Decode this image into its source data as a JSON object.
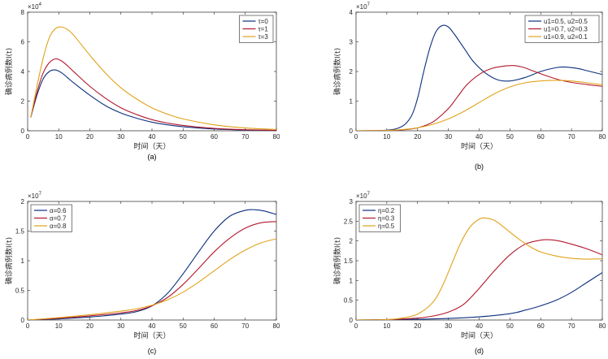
{
  "colors": {
    "blue": "#0b2f7e",
    "red": "#b2182b",
    "orange": "#e0a21b",
    "axis": "#262626"
  },
  "chart_data": [
    {
      "panel": "a",
      "type": "line",
      "caption": "(a)",
      "xlabel": "时间（天）",
      "ylabel": "确诊病例数I(t)",
      "exponent_label": "×10",
      "exponent_power": "4",
      "xlim": [
        0,
        80
      ],
      "ylim": [
        0,
        8
      ],
      "xticks": [
        0,
        10,
        20,
        30,
        40,
        50,
        60,
        70,
        80
      ],
      "yticks": [
        0,
        2,
        4,
        6,
        8
      ],
      "legend_position": "top-right",
      "series": [
        {
          "name": "τ=0",
          "color": "#0b2f7e",
          "x": [
            1,
            3,
            5,
            7,
            9,
            11,
            13,
            15,
            20,
            25,
            30,
            35,
            40,
            45,
            50,
            60,
            70,
            80
          ],
          "y": [
            0.9,
            2.4,
            3.5,
            4.0,
            4.1,
            3.9,
            3.55,
            3.2,
            2.4,
            1.7,
            1.2,
            0.85,
            0.58,
            0.4,
            0.27,
            0.12,
            0.05,
            0.02
          ]
        },
        {
          "name": "τ=1",
          "color": "#b2182b",
          "x": [
            1,
            3,
            5,
            7,
            9,
            11,
            13,
            15,
            20,
            25,
            30,
            35,
            40,
            45,
            50,
            60,
            70,
            80
          ],
          "y": [
            0.9,
            2.6,
            3.9,
            4.6,
            4.85,
            4.7,
            4.35,
            3.95,
            3.0,
            2.2,
            1.55,
            1.1,
            0.75,
            0.52,
            0.36,
            0.16,
            0.07,
            0.03
          ]
        },
        {
          "name": "τ=3",
          "color": "#e0a21b",
          "x": [
            1,
            3,
            5,
            7,
            9,
            11,
            13,
            15,
            20,
            25,
            30,
            35,
            40,
            45,
            50,
            60,
            70,
            80
          ],
          "y": [
            0.9,
            3.0,
            4.9,
            6.3,
            6.9,
            7.0,
            6.8,
            6.4,
            5.1,
            3.9,
            2.9,
            2.15,
            1.55,
            1.12,
            0.8,
            0.4,
            0.19,
            0.09
          ]
        }
      ]
    },
    {
      "panel": "b",
      "type": "line",
      "caption": "(b)",
      "xlabel": "时间（天）",
      "ylabel": "确诊病例数I(t)",
      "exponent_label": "×10",
      "exponent_power": "7",
      "xlim": [
        0,
        80
      ],
      "ylim": [
        0,
        4
      ],
      "xticks": [
        0,
        10,
        20,
        30,
        40,
        50,
        60,
        70,
        80
      ],
      "yticks": [
        0,
        1,
        2,
        3,
        4
      ],
      "legend_position": "top-right",
      "series": [
        {
          "name": "u1=0.5, u2=0.5",
          "color": "#0b2f7e",
          "x": [
            0,
            10,
            15,
            18,
            20,
            22,
            24,
            26,
            28,
            30,
            32,
            35,
            38,
            42,
            46,
            50,
            55,
            60,
            65,
            68,
            72,
            76,
            80
          ],
          "y": [
            0,
            0.02,
            0.15,
            0.5,
            1.1,
            2.0,
            2.8,
            3.35,
            3.55,
            3.5,
            3.25,
            2.8,
            2.35,
            1.95,
            1.72,
            1.68,
            1.8,
            2.0,
            2.13,
            2.15,
            2.1,
            2.0,
            1.9
          ]
        },
        {
          "name": "u1=0.7, u2=0.3",
          "color": "#b2182b",
          "x": [
            0,
            10,
            15,
            20,
            25,
            30,
            33,
            36,
            40,
            44,
            48,
            51,
            54,
            58,
            62,
            66,
            70,
            75,
            80
          ],
          "y": [
            0,
            0.01,
            0.03,
            0.1,
            0.3,
            0.75,
            1.15,
            1.55,
            1.9,
            2.1,
            2.18,
            2.2,
            2.15,
            2.0,
            1.85,
            1.72,
            1.63,
            1.56,
            1.5
          ]
        },
        {
          "name": "u1=0.9, u2=0.1",
          "color": "#e0a21b",
          "x": [
            0,
            10,
            15,
            20,
            25,
            30,
            35,
            40,
            45,
            50,
            55,
            60,
            65,
            70,
            75,
            80
          ],
          "y": [
            0,
            0.01,
            0.04,
            0.1,
            0.22,
            0.4,
            0.65,
            0.95,
            1.25,
            1.48,
            1.62,
            1.68,
            1.7,
            1.68,
            1.62,
            1.55
          ]
        }
      ]
    },
    {
      "panel": "c",
      "type": "line",
      "caption": "(c)",
      "xlabel": "时间（天）",
      "ylabel": "确诊病例数I(t)",
      "exponent_label": "×10",
      "exponent_power": "7",
      "xlim": [
        0,
        80
      ],
      "ylim": [
        0,
        2
      ],
      "xticks": [
        0,
        10,
        20,
        30,
        40,
        50,
        60,
        70,
        80
      ],
      "yticks": [
        0,
        0.5,
        1,
        1.5,
        2
      ],
      "legend_position": "top-left",
      "series": [
        {
          "name": "α=0.6",
          "color": "#0b2f7e",
          "x": [
            0,
            10,
            20,
            30,
            35,
            40,
            45,
            50,
            55,
            60,
            65,
            70,
            73,
            76,
            80
          ],
          "y": [
            0,
            0.02,
            0.05,
            0.1,
            0.14,
            0.24,
            0.45,
            0.78,
            1.15,
            1.5,
            1.75,
            1.85,
            1.86,
            1.84,
            1.78
          ]
        },
        {
          "name": "α=0.7",
          "color": "#b2182b",
          "x": [
            0,
            10,
            20,
            30,
            35,
            40,
            45,
            50,
            55,
            60,
            65,
            70,
            75,
            80
          ],
          "y": [
            0,
            0.03,
            0.07,
            0.12,
            0.16,
            0.24,
            0.38,
            0.6,
            0.87,
            1.15,
            1.38,
            1.55,
            1.64,
            1.66
          ]
        },
        {
          "name": "α=0.8",
          "color": "#e0a21b",
          "x": [
            0,
            10,
            20,
            30,
            35,
            40,
            45,
            50,
            55,
            60,
            65,
            70,
            75,
            80
          ],
          "y": [
            0,
            0.04,
            0.09,
            0.15,
            0.19,
            0.25,
            0.34,
            0.47,
            0.64,
            0.83,
            1.02,
            1.18,
            1.3,
            1.37
          ]
        }
      ]
    },
    {
      "panel": "d",
      "type": "line",
      "caption": "(d)",
      "xlabel": "时间（天）",
      "ylabel": "确诊病例数I(t)",
      "exponent_label": "×10",
      "exponent_power": "7",
      "xlim": [
        0,
        80
      ],
      "ylim": [
        0,
        3
      ],
      "xticks": [
        0,
        10,
        20,
        30,
        40,
        50,
        60,
        70,
        80
      ],
      "yticks": [
        0,
        0.5,
        1,
        1.5,
        2,
        2.5,
        3
      ],
      "legend_position": "top-left",
      "series": [
        {
          "name": "η=0.2",
          "color": "#0b2f7e",
          "x": [
            0,
            10,
            20,
            30,
            40,
            50,
            55,
            60,
            65,
            70,
            75,
            80
          ],
          "y": [
            0,
            0.01,
            0.02,
            0.04,
            0.08,
            0.16,
            0.25,
            0.36,
            0.5,
            0.7,
            0.95,
            1.2
          ]
        },
        {
          "name": "η=0.3",
          "color": "#b2182b",
          "x": [
            0,
            10,
            20,
            25,
            30,
            35,
            40,
            45,
            50,
            55,
            60,
            63,
            66,
            70,
            75,
            80
          ],
          "y": [
            0,
            0.01,
            0.05,
            0.1,
            0.2,
            0.4,
            0.8,
            1.25,
            1.65,
            1.92,
            2.02,
            2.03,
            2.0,
            1.92,
            1.8,
            1.65
          ]
        },
        {
          "name": "η=0.5",
          "color": "#e0a21b",
          "x": [
            0,
            10,
            15,
            20,
            25,
            28,
            31,
            34,
            37,
            40,
            42,
            45,
            48,
            52,
            56,
            60,
            65,
            70,
            75,
            80
          ],
          "y": [
            0,
            0.01,
            0.05,
            0.15,
            0.45,
            0.85,
            1.4,
            1.95,
            2.35,
            2.55,
            2.58,
            2.52,
            2.35,
            2.1,
            1.88,
            1.72,
            1.62,
            1.56,
            1.54,
            1.55
          ]
        }
      ]
    }
  ]
}
